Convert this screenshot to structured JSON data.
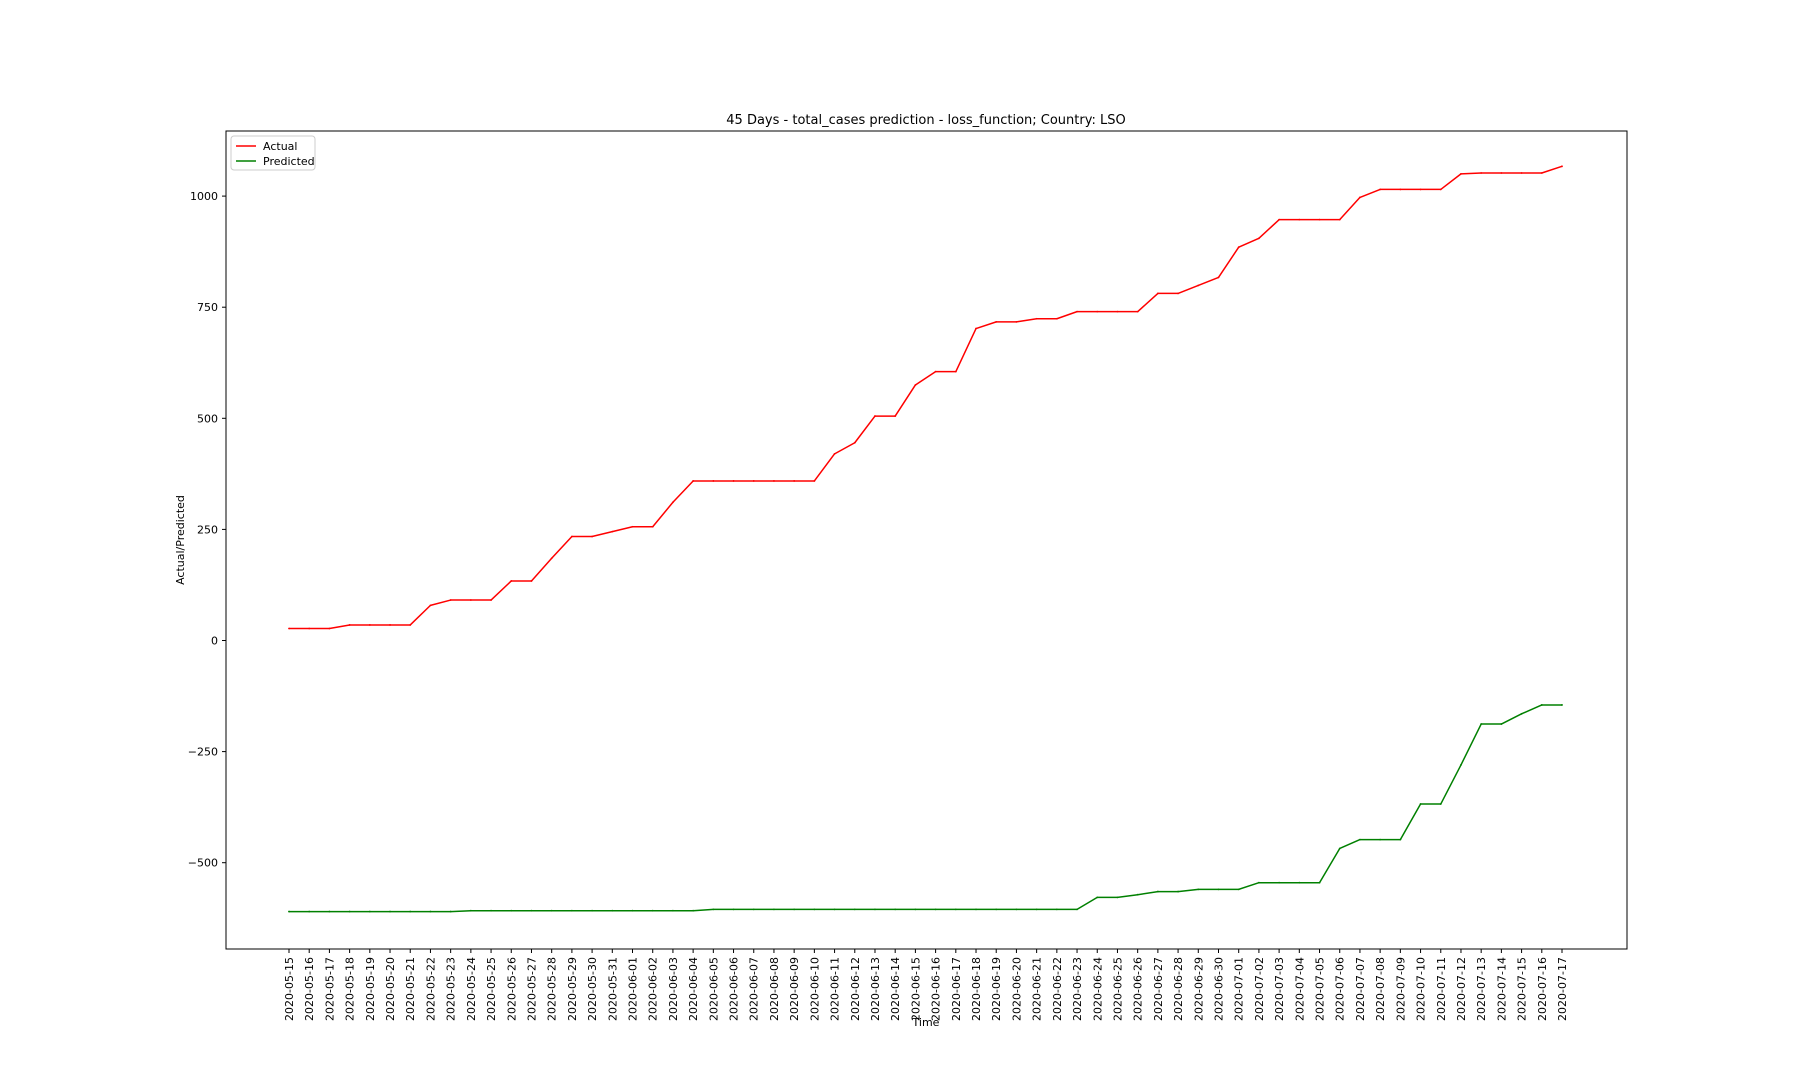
{
  "chart_data": {
    "type": "line",
    "title": "45 Days - total_cases prediction - loss_function; Country: LSO",
    "xlabel": "Time",
    "ylabel": "Actual/Predicted",
    "ylim": [
      -690,
      1150
    ],
    "yticks": [
      1000,
      750,
      500,
      250,
      0,
      -250,
      -500
    ],
    "ytick_labels": [
      "1000",
      "750",
      "500",
      "250",
      "0",
      "−250",
      "−500"
    ],
    "grid": false,
    "legend_position": "upper left",
    "categories": [
      "2020-05-15",
      "2020-05-16",
      "2020-05-17",
      "2020-05-18",
      "2020-05-19",
      "2020-05-20",
      "2020-05-21",
      "2020-05-22",
      "2020-05-23",
      "2020-05-24",
      "2020-05-25",
      "2020-05-26",
      "2020-05-27",
      "2020-05-28",
      "2020-05-29",
      "2020-05-30",
      "2020-05-31",
      "2020-06-01",
      "2020-06-02",
      "2020-06-03",
      "2020-06-04",
      "2020-06-05",
      "2020-06-06",
      "2020-06-07",
      "2020-06-08",
      "2020-06-09",
      "2020-06-10",
      "2020-06-11",
      "2020-06-12",
      "2020-06-13",
      "2020-06-14",
      "2020-06-15",
      "2020-06-16",
      "2020-06-17",
      "2020-06-18",
      "2020-06-19",
      "2020-06-20",
      "2020-06-21",
      "2020-06-22",
      "2020-06-23",
      "2020-06-24",
      "2020-06-25",
      "2020-06-26",
      "2020-06-27",
      "2020-06-28",
      "2020-06-29",
      "2020-06-30",
      "2020-07-01",
      "2020-07-02",
      "2020-07-03",
      "2020-07-04",
      "2020-07-05",
      "2020-07-06",
      "2020-07-07",
      "2020-07-08",
      "2020-07-09",
      "2020-07-10",
      "2020-07-11",
      "2020-07-12",
      "2020-07-13",
      "2020-07-14",
      "2020-07-15",
      "2020-07-16",
      "2020-07-17"
    ],
    "series": [
      {
        "name": "Actual",
        "color": "#ff0000",
        "values": [
          27,
          27,
          27,
          35,
          35,
          35,
          35,
          79,
          91,
          91,
          91,
          134,
          134,
          185,
          234,
          234,
          245,
          256,
          256,
          311,
          359,
          359,
          359,
          359,
          359,
          359,
          359,
          420,
          445,
          505,
          505,
          575,
          605,
          605,
          702,
          717,
          717,
          724,
          724,
          740,
          740,
          740,
          740,
          781,
          781,
          799,
          817,
          885,
          905,
          947,
          947,
          947,
          947,
          997,
          1015,
          1015,
          1015,
          1015,
          1050,
          1052,
          1052,
          1052,
          1052,
          1067
        ]
      },
      {
        "name": "Predicted",
        "color": "#008000",
        "values": [
          -610,
          -610,
          -610,
          -610,
          -610,
          -610,
          -610,
          -610,
          -610,
          -608,
          -608,
          -608,
          -608,
          -608,
          -608,
          -608,
          -608,
          -608,
          -608,
          -608,
          -608,
          -605,
          -605,
          -605,
          -605,
          -605,
          -605,
          -605,
          -605,
          -605,
          -605,
          -605,
          -605,
          -605,
          -605,
          -605,
          -605,
          -605,
          -605,
          -605,
          -578,
          -578,
          -572,
          -565,
          -565,
          -560,
          -560,
          -560,
          -545,
          -545,
          -545,
          -545,
          -468,
          -448,
          -448,
          -448,
          -368,
          -368,
          -280,
          -188,
          -188,
          -165,
          -145,
          -145
        ]
      }
    ]
  }
}
